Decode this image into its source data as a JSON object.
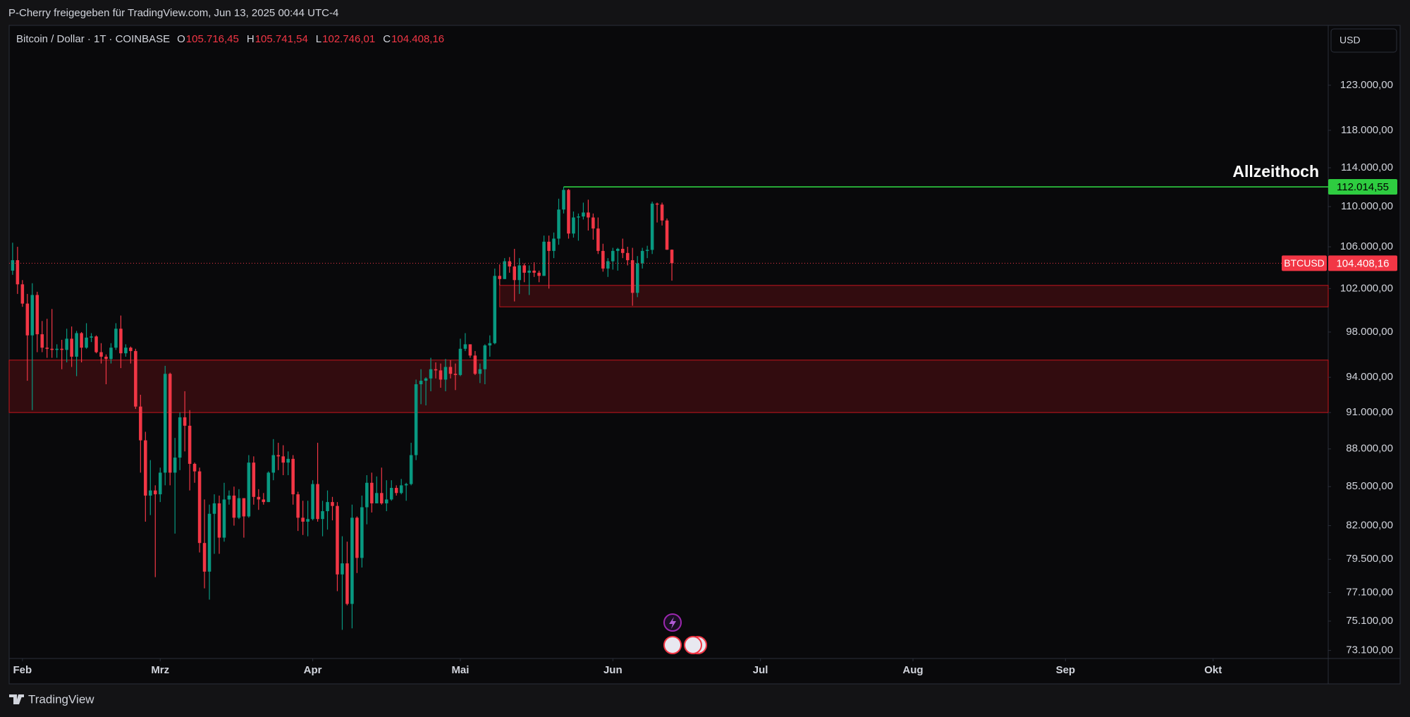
{
  "share_bar": "P-Cherry freigegeben für TradingView.com, Jun 13, 2025 00:44 UTC-4",
  "footer": "TradingView",
  "chart_data": {
    "type": "candlestick",
    "title": "Bitcoin / Dollar · 1T · COINBASE",
    "currency": "USD",
    "ohlc": [
      {
        "key": "O",
        "value": 105716.45,
        "label": "105.716,45"
      },
      {
        "key": "H",
        "value": 105741.54,
        "label": "105.741,54"
      },
      {
        "key": "L",
        "value": 102746.01,
        "label": "102.746,01"
      },
      {
        "key": "C",
        "value": 104408.16,
        "label": "104.408,16"
      }
    ],
    "up_color": "#089981",
    "down_color": "#f23645",
    "log_scale": true,
    "grid": false,
    "x": [
      30,
      31,
      32,
      33,
      34,
      35,
      36,
      37,
      38,
      39,
      40,
      41,
      42,
      43,
      44,
      45,
      46,
      47,
      48,
      49,
      50,
      51,
      52,
      53,
      54,
      55,
      56,
      57,
      58,
      59,
      60,
      61,
      62,
      63,
      64,
      65,
      66,
      67,
      68,
      69,
      70,
      71,
      72,
      73,
      74,
      75,
      76,
      77,
      78,
      79,
      80,
      81,
      82,
      83,
      84,
      85,
      86,
      87,
      88,
      89,
      90,
      91,
      92,
      93,
      94,
      95,
      96,
      97,
      98,
      99,
      100,
      101,
      102,
      103,
      104,
      105,
      106,
      107,
      108,
      109,
      110,
      111,
      112,
      113,
      114,
      115,
      116,
      117,
      118,
      119,
      120,
      121,
      122,
      123,
      124,
      125,
      126,
      127,
      128,
      129,
      130,
      131,
      132,
      133,
      134,
      135,
      136,
      137,
      138,
      139,
      140,
      141,
      142,
      143,
      144,
      145,
      146,
      147,
      148,
      149,
      150,
      151,
      152,
      153,
      154,
      155,
      156,
      157,
      158,
      159,
      160,
      161,
      162,
      163,
      164
    ],
    "open": [
      103700,
      104700,
      102400,
      100600,
      97700,
      101400,
      97800,
      96600,
      96500,
      96400,
      96500,
      96400,
      97400,
      95800,
      97900,
      96600,
      97500,
      97600,
      96200,
      95800,
      95600,
      96600,
      98300,
      96100,
      96600,
      96300,
      91500,
      88700,
      84300,
      84700,
      84400,
      86100,
      94300,
      86100,
      87300,
      90600,
      89900,
      86800,
      86200,
      80700,
      78600,
      82900,
      83700,
      81100,
      84000,
      84300,
      82600,
      84100,
      82700,
      86900,
      84200,
      84000,
      83800,
      86100,
      87500,
      87400,
      86900,
      87200,
      84400,
      82600,
      82300,
      82500,
      85200,
      82500,
      83100,
      83800,
      83500,
      78400,
      79200,
      76300,
      82600,
      79600,
      83400,
      85300,
      83700,
      84500,
      83700,
      84000,
      84900,
      84500,
      85100,
      85200,
      87500,
      93400,
      93700,
      93900,
      94700,
      94600,
      93800,
      94900,
      94300,
      94200,
      96500,
      96900,
      95900,
      94300,
      94700,
      96800,
      97000,
      103200,
      102900,
      104600,
      104100,
      102800,
      104200,
      103500,
      103700,
      103500,
      103200,
      106500,
      105600,
      106800,
      109700,
      111700,
      107300,
      108900,
      109000,
      109400,
      108900,
      107800,
      105600,
      103900,
      104600,
      105600,
      105800,
      105400,
      104700,
      101600,
      104400,
      105600,
      105700,
      110300,
      110200,
      108600,
      105716.45
    ],
    "high": [
      106400,
      106000,
      102800,
      101500,
      102500,
      101700,
      99000,
      99200,
      100100,
      96900,
      97300,
      98300,
      98500,
      98100,
      98000,
      98800,
      97900,
      97700,
      97000,
      96000,
      97000,
      98800,
      99500,
      96900,
      96700,
      96500,
      92500,
      89400,
      87100,
      85100,
      86500,
      95000,
      94400,
      88900,
      91000,
      92800,
      91200,
      86900,
      86500,
      84000,
      83600,
      84400,
      84300,
      85300,
      84700,
      85000,
      84800,
      84100,
      87500,
      87400,
      84800,
      84500,
      86200,
      88800,
      88500,
      88300,
      87800,
      87500,
      84600,
      83900,
      83900,
      85500,
      88500,
      83900,
      84700,
      84200,
      83800,
      81200,
      80800,
      83600,
      82700,
      84300,
      85900,
      86100,
      85800,
      86500,
      85500,
      85500,
      85100,
      85600,
      85300,
      88500,
      93800,
      94700,
      94000,
      95700,
      95300,
      95200,
      95600,
      95500,
      95200,
      97400,
      97900,
      96900,
      96300,
      95200,
      96900,
      97700,
      103900,
      104300,
      104900,
      105000,
      105800,
      104900,
      104400,
      104200,
      104500,
      103700,
      107100,
      107100,
      107400,
      110800,
      112014.55,
      111800,
      109500,
      109300,
      110400,
      110700,
      109300,
      108900,
      106300,
      104900,
      105900,
      105900,
      106800,
      106000,
      105900,
      105100,
      105900,
      106100,
      110500,
      110400,
      110400,
      108800,
      105741.54
    ],
    "low": [
      103300,
      101500,
      100300,
      93700,
      91200,
      96200,
      96200,
      95700,
      95700,
      95700,
      94700,
      95300,
      94900,
      94100,
      95300,
      96500,
      97100,
      96100,
      95200,
      93400,
      95200,
      96400,
      94800,
      95800,
      95200,
      91300,
      86100,
      82300,
      82800,
      78200,
      83800,
      85100,
      85100,
      81400,
      86300,
      87800,
      84700,
      85300,
      80000,
      77400,
      76600,
      79900,
      79900,
      80800,
      83600,
      82000,
      82500,
      81100,
      82600,
      83600,
      83200,
      83600,
      83800,
      85500,
      86300,
      85900,
      85900,
      83600,
      81600,
      81300,
      81200,
      82400,
      82300,
      81200,
      81700,
      82400,
      77200,
      74500,
      76200,
      74600,
      78500,
      78900,
      82100,
      83000,
      83700,
      83600,
      83100,
      83900,
      84300,
      84400,
      83900,
      85100,
      87100,
      91700,
      91600,
      92800,
      93900,
      93100,
      92800,
      93900,
      92900,
      94100,
      96300,
      95700,
      94200,
      93500,
      93400,
      95800,
      96900,
      102300,
      102900,
      103500,
      100800,
      101500,
      102600,
      101400,
      103100,
      102600,
      103200,
      102000,
      104900,
      106200,
      109300,
      106800,
      106900,
      106600,
      108700,
      107600,
      106700,
      105300,
      103600,
      103100,
      103800,
      103700,
      104900,
      104200,
      100400,
      101200,
      103900,
      104900,
      105300,
      108400,
      108100,
      105700,
      102746.01
    ],
    "close": [
      104700,
      102400,
      100600,
      97700,
      101400,
      97800,
      96600,
      96500,
      96400,
      96500,
      96400,
      97400,
      95800,
      97900,
      96600,
      97500,
      97600,
      96200,
      95800,
      95600,
      96600,
      98300,
      96100,
      96600,
      96300,
      91500,
      88700,
      84300,
      84700,
      84400,
      86100,
      94300,
      86100,
      87300,
      90600,
      89900,
      86800,
      86200,
      80700,
      78600,
      82900,
      83700,
      81100,
      84000,
      84300,
      82600,
      84100,
      82700,
      86900,
      84200,
      84000,
      83800,
      86100,
      87500,
      87400,
      86900,
      87200,
      84400,
      82600,
      82300,
      82500,
      85200,
      82500,
      83100,
      83800,
      83500,
      78400,
      79200,
      76300,
      82600,
      79600,
      83400,
      85300,
      83700,
      84500,
      83700,
      84000,
      84900,
      84500,
      85100,
      85200,
      87500,
      93400,
      93700,
      93900,
      94700,
      94600,
      93800,
      94900,
      94300,
      94200,
      96500,
      96900,
      95900,
      94300,
      94700,
      96800,
      97000,
      103200,
      102900,
      104600,
      104100,
      102800,
      104200,
      103500,
      103700,
      103500,
      103200,
      106500,
      105600,
      106800,
      109700,
      111700,
      107300,
      108900,
      109000,
      109400,
      108900,
      107800,
      105600,
      103900,
      104600,
      105600,
      105800,
      105400,
      104700,
      101600,
      104400,
      105600,
      105700,
      110300,
      110200,
      108600,
      105716.45,
      104408.16
    ],
    "xlim": [
      29.3,
      297.4
    ],
    "xticks": [
      {
        "value": 32,
        "label": "Feb"
      },
      {
        "value": 60,
        "label": "Mrz"
      },
      {
        "value": 91,
        "label": "Apr"
      },
      {
        "value": 121,
        "label": "Mai"
      },
      {
        "value": 152,
        "label": "Jun"
      },
      {
        "value": 182,
        "label": "Jul"
      },
      {
        "value": 213,
        "label": "Aug"
      },
      {
        "value": 244,
        "label": "Sep"
      },
      {
        "value": 274,
        "label": "Okt"
      }
    ],
    "ylim": [
      72560,
      129800
    ],
    "yticks": [
      {
        "value": 123000,
        "label": "123.000,00"
      },
      {
        "value": 118000,
        "label": "118.000,00"
      },
      {
        "value": 114000,
        "label": "114.000,00"
      },
      {
        "value": 110000,
        "label": "110.000,00"
      },
      {
        "value": 106000,
        "label": "106.000,00"
      },
      {
        "value": 102000,
        "label": "102.000,00"
      },
      {
        "value": 98000,
        "label": "98.000,00"
      },
      {
        "value": 94000,
        "label": "94.000,00"
      },
      {
        "value": 91000,
        "label": "91.000,00"
      },
      {
        "value": 88000,
        "label": "88.000,00"
      },
      {
        "value": 85000,
        "label": "85.000,00"
      },
      {
        "value": 82000,
        "label": "82.000,00"
      },
      {
        "value": 79500,
        "label": "79.500,00"
      },
      {
        "value": 77100,
        "label": "77.100,00"
      },
      {
        "value": 75100,
        "label": "75.100,00"
      },
      {
        "value": 73100,
        "label": "73.100,00"
      }
    ],
    "zones": [
      {
        "x_start": 129,
        "low": 100300,
        "high": 102300,
        "color": "#c4161e"
      },
      {
        "x_start": 29.3,
        "low": 91000,
        "high": 95500,
        "color": "#c4161e"
      }
    ],
    "ath_line": {
      "label": "Allzeithoch",
      "value": 112014.55,
      "value_label": "112.014,55",
      "x_start": 142,
      "color": "#2ecc40"
    },
    "price_line": {
      "label": "BTCUSD",
      "value": 104408.16,
      "value_label": "104.408,16",
      "color": "#f23645"
    }
  }
}
